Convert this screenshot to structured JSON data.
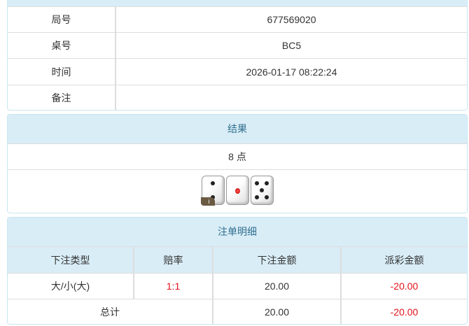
{
  "info": {
    "rows": [
      {
        "label": "局号",
        "value": "677569020"
      },
      {
        "label": "桌号",
        "value": "BC5"
      },
      {
        "label": "时间",
        "value": "2026-01-17 08:22:24"
      },
      {
        "label": "备注",
        "value": ""
      }
    ]
  },
  "result": {
    "title": "结果",
    "points": "8 点",
    "dice": [
      2,
      1,
      5
    ],
    "badge": "i"
  },
  "bets": {
    "title": "注单明细",
    "headers": [
      "下注类型",
      "赔率",
      "下注金额",
      "派彩金额"
    ],
    "rows": [
      {
        "type": "大/小(大)",
        "odds": "1:1",
        "amount": "20.00",
        "payout": "-20.00"
      }
    ],
    "total": {
      "label": "总计",
      "amount": "20.00",
      "payout": "-20.00"
    }
  },
  "colors": {
    "header_bg": "#d9edf7",
    "header_text": "#31708f",
    "negative": "#e4131b"
  }
}
